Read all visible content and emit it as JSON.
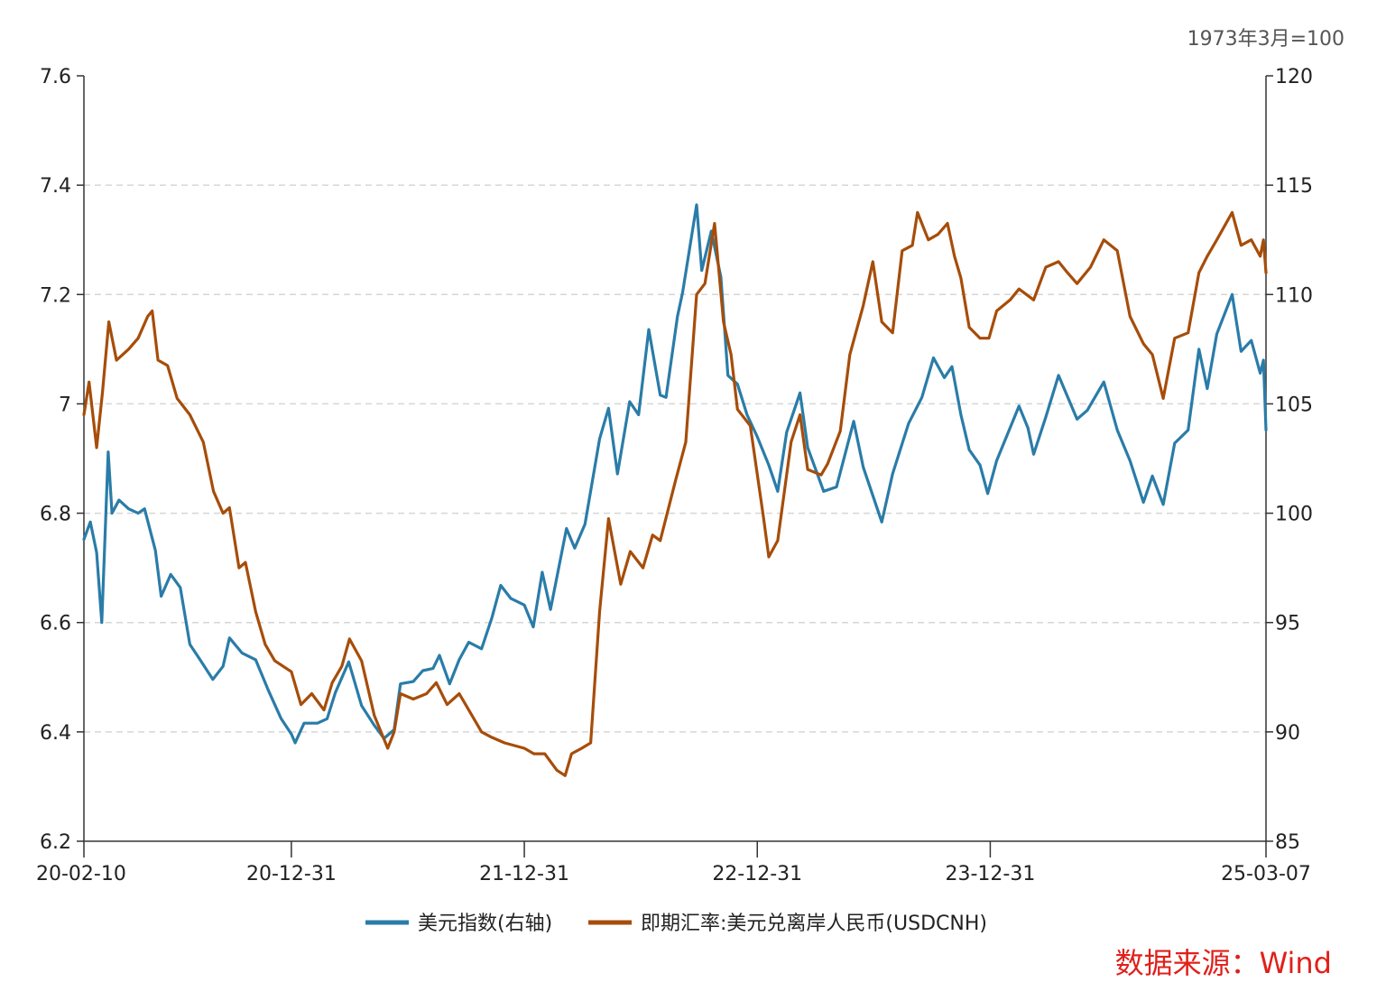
{
  "chart_data": {
    "type": "line",
    "title": "",
    "unit_note": "1973年3月=100",
    "source": "数据来源：Wind",
    "x_ticks": [
      "20-02-10",
      "20-12-31",
      "21-12-31",
      "22-12-31",
      "23-12-31",
      "25-03-07"
    ],
    "y_left": {
      "ticks": [
        "7.6",
        "7.4",
        "7.2",
        "7",
        "6.8",
        "6.6",
        "6.4",
        "6.2"
      ],
      "range": [
        6.2,
        7.6
      ]
    },
    "y_right": {
      "ticks": [
        "120",
        "115",
        "110",
        "105",
        "100",
        "95",
        "90",
        "85"
      ],
      "range": [
        85,
        120
      ]
    },
    "grid": "horizontal-dashed",
    "legend_position": "bottom",
    "series": [
      {
        "name": "美元指数(右轴)",
        "axis": "right",
        "color": "#2a7ca8",
        "points": [
          [
            "2020-02-10",
            98.8
          ],
          [
            "2020-02-20",
            99.6
          ],
          [
            "2020-03-01",
            98.2
          ],
          [
            "2020-03-09",
            95.0
          ],
          [
            "2020-03-19",
            102.8
          ],
          [
            "2020-03-25",
            100.0
          ],
          [
            "2020-04-05",
            100.6
          ],
          [
            "2020-04-20",
            100.2
          ],
          [
            "2020-05-05",
            100.0
          ],
          [
            "2020-05-15",
            100.2
          ],
          [
            "2020-06-01",
            98.3
          ],
          [
            "2020-06-10",
            96.2
          ],
          [
            "2020-06-25",
            97.2
          ],
          [
            "2020-07-10",
            96.6
          ],
          [
            "2020-07-25",
            94.0
          ],
          [
            "2020-08-10",
            93.3
          ],
          [
            "2020-08-30",
            92.4
          ],
          [
            "2020-09-15",
            93.0
          ],
          [
            "2020-09-25",
            94.3
          ],
          [
            "2020-10-15",
            93.6
          ],
          [
            "2020-11-05",
            93.3
          ],
          [
            "2020-11-25",
            91.9
          ],
          [
            "2020-12-15",
            90.6
          ],
          [
            "2020-12-31",
            89.9
          ],
          [
            "2021-01-06",
            89.5
          ],
          [
            "2021-01-20",
            90.4
          ],
          [
            "2021-02-10",
            90.4
          ],
          [
            "2021-02-25",
            90.6
          ],
          [
            "2021-03-10",
            91.8
          ],
          [
            "2021-03-31",
            93.2
          ],
          [
            "2021-04-20",
            91.2
          ],
          [
            "2021-05-10",
            90.3
          ],
          [
            "2021-05-25",
            89.7
          ],
          [
            "2021-06-10",
            90.1
          ],
          [
            "2021-06-20",
            92.2
          ],
          [
            "2021-07-10",
            92.3
          ],
          [
            "2021-07-25",
            92.8
          ],
          [
            "2021-08-10",
            92.9
          ],
          [
            "2021-08-20",
            93.5
          ],
          [
            "2021-09-05",
            92.2
          ],
          [
            "2021-09-20",
            93.3
          ],
          [
            "2021-10-05",
            94.1
          ],
          [
            "2021-10-25",
            93.8
          ],
          [
            "2021-11-10",
            95.2
          ],
          [
            "2021-11-24",
            96.7
          ],
          [
            "2021-12-10",
            96.1
          ],
          [
            "2021-12-31",
            95.8
          ],
          [
            "2022-01-14",
            94.8
          ],
          [
            "2022-01-28",
            97.3
          ],
          [
            "2022-02-10",
            95.6
          ],
          [
            "2022-03-07",
            99.3
          ],
          [
            "2022-03-20",
            98.4
          ],
          [
            "2022-04-05",
            99.5
          ],
          [
            "2022-04-28",
            103.4
          ],
          [
            "2022-05-12",
            104.8
          ],
          [
            "2022-05-26",
            101.8
          ],
          [
            "2022-06-14",
            105.1
          ],
          [
            "2022-06-28",
            104.5
          ],
          [
            "2022-07-14",
            108.4
          ],
          [
            "2022-08-01",
            105.4
          ],
          [
            "2022-08-10",
            105.3
          ],
          [
            "2022-08-28",
            109.0
          ],
          [
            "2022-09-05",
            110.1
          ],
          [
            "2022-09-27",
            114.1
          ],
          [
            "2022-10-05",
            111.1
          ],
          [
            "2022-10-20",
            112.9
          ],
          [
            "2022-11-04",
            110.8
          ],
          [
            "2022-11-15",
            106.3
          ],
          [
            "2022-11-30",
            105.9
          ],
          [
            "2022-12-15",
            104.5
          ],
          [
            "2022-12-31",
            103.5
          ],
          [
            "2023-01-18",
            102.2
          ],
          [
            "2023-02-01",
            101.0
          ],
          [
            "2023-02-15",
            103.7
          ],
          [
            "2023-03-08",
            105.5
          ],
          [
            "2023-03-20",
            103.0
          ],
          [
            "2023-04-14",
            101.0
          ],
          [
            "2023-05-04",
            101.2
          ],
          [
            "2023-05-31",
            104.2
          ],
          [
            "2023-06-15",
            102.1
          ],
          [
            "2023-07-14",
            99.6
          ],
          [
            "2023-07-31",
            101.8
          ],
          [
            "2023-08-25",
            104.1
          ],
          [
            "2023-09-15",
            105.3
          ],
          [
            "2023-10-03",
            107.1
          ],
          [
            "2023-10-20",
            106.2
          ],
          [
            "2023-11-01",
            106.7
          ],
          [
            "2023-11-15",
            104.5
          ],
          [
            "2023-11-28",
            102.9
          ],
          [
            "2023-12-15",
            102.2
          ],
          [
            "2023-12-27",
            100.9
          ],
          [
            "2024-01-10",
            102.4
          ],
          [
            "2024-02-14",
            104.9
          ],
          [
            "2024-02-28",
            103.9
          ],
          [
            "2024-03-08",
            102.7
          ],
          [
            "2024-03-27",
            104.4
          ],
          [
            "2024-04-16",
            106.3
          ],
          [
            "2024-05-15",
            104.3
          ],
          [
            "2024-05-31",
            104.7
          ],
          [
            "2024-06-26",
            106.0
          ],
          [
            "2024-07-17",
            103.8
          ],
          [
            "2024-08-06",
            102.4
          ],
          [
            "2024-08-27",
            100.5
          ],
          [
            "2024-09-10",
            101.7
          ],
          [
            "2024-09-27",
            100.4
          ],
          [
            "2024-10-15",
            103.2
          ],
          [
            "2024-11-05",
            103.8
          ],
          [
            "2024-11-22",
            107.5
          ],
          [
            "2024-12-05",
            105.7
          ],
          [
            "2024-12-20",
            108.2
          ],
          [
            "2025-01-13",
            110.0
          ],
          [
            "2025-01-27",
            107.4
          ],
          [
            "2025-02-12",
            107.9
          ],
          [
            "2025-02-26",
            106.4
          ],
          [
            "2025-03-03",
            107.0
          ],
          [
            "2025-03-07",
            103.8
          ]
        ]
      },
      {
        "name": "即期汇率:美元兑离岸人民币(USDCNH)",
        "axis": "left",
        "color": "#a64d0a",
        "points": [
          [
            "2020-02-10",
            6.98
          ],
          [
            "2020-02-18",
            7.04
          ],
          [
            "2020-03-01",
            6.92
          ],
          [
            "2020-03-10",
            7.02
          ],
          [
            "2020-03-20",
            7.15
          ],
          [
            "2020-04-01",
            7.08
          ],
          [
            "2020-04-20",
            7.1
          ],
          [
            "2020-05-05",
            7.12
          ],
          [
            "2020-05-20",
            7.16
          ],
          [
            "2020-05-27",
            7.17
          ],
          [
            "2020-06-05",
            7.08
          ],
          [
            "2020-06-20",
            7.07
          ],
          [
            "2020-07-05",
            7.01
          ],
          [
            "2020-07-25",
            6.98
          ],
          [
            "2020-08-15",
            6.93
          ],
          [
            "2020-08-31",
            6.84
          ],
          [
            "2020-09-15",
            6.8
          ],
          [
            "2020-09-25",
            6.81
          ],
          [
            "2020-10-10",
            6.7
          ],
          [
            "2020-10-20",
            6.71
          ],
          [
            "2020-11-05",
            6.62
          ],
          [
            "2020-11-20",
            6.56
          ],
          [
            "2020-12-05",
            6.53
          ],
          [
            "2020-12-31",
            6.51
          ],
          [
            "2021-01-15",
            6.45
          ],
          [
            "2021-02-01",
            6.47
          ],
          [
            "2021-02-20",
            6.44
          ],
          [
            "2021-03-05",
            6.49
          ],
          [
            "2021-03-20",
            6.52
          ],
          [
            "2021-04-01",
            6.57
          ],
          [
            "2021-04-20",
            6.53
          ],
          [
            "2021-05-10",
            6.43
          ],
          [
            "2021-05-31",
            6.37
          ],
          [
            "2021-06-10",
            6.4
          ],
          [
            "2021-06-20",
            6.47
          ],
          [
            "2021-07-10",
            6.46
          ],
          [
            "2021-07-31",
            6.47
          ],
          [
            "2021-08-15",
            6.49
          ],
          [
            "2021-09-01",
            6.45
          ],
          [
            "2021-09-20",
            6.47
          ],
          [
            "2021-10-05",
            6.44
          ],
          [
            "2021-10-25",
            6.4
          ],
          [
            "2021-11-10",
            6.39
          ],
          [
            "2021-11-30",
            6.38
          ],
          [
            "2021-12-31",
            6.37
          ],
          [
            "2022-01-15",
            6.36
          ],
          [
            "2022-02-01",
            6.36
          ],
          [
            "2022-02-20",
            6.33
          ],
          [
            "2022-03-05",
            6.32
          ],
          [
            "2022-03-15",
            6.36
          ],
          [
            "2022-03-31",
            6.37
          ],
          [
            "2022-04-14",
            6.38
          ],
          [
            "2022-04-28",
            6.62
          ],
          [
            "2022-05-12",
            6.79
          ],
          [
            "2022-05-31",
            6.67
          ],
          [
            "2022-06-15",
            6.73
          ],
          [
            "2022-07-05",
            6.7
          ],
          [
            "2022-07-20",
            6.76
          ],
          [
            "2022-08-01",
            6.75
          ],
          [
            "2022-08-25",
            6.86
          ],
          [
            "2022-09-10",
            6.93
          ],
          [
            "2022-09-27",
            7.2
          ],
          [
            "2022-10-10",
            7.22
          ],
          [
            "2022-10-25",
            7.33
          ],
          [
            "2022-11-08",
            7.15
          ],
          [
            "2022-11-20",
            7.09
          ],
          [
            "2022-11-30",
            6.99
          ],
          [
            "2022-12-20",
            6.96
          ],
          [
            "2023-01-10",
            6.79
          ],
          [
            "2023-01-18",
            6.72
          ],
          [
            "2023-02-01",
            6.75
          ],
          [
            "2023-02-22",
            6.93
          ],
          [
            "2023-03-08",
            6.98
          ],
          [
            "2023-03-20",
            6.88
          ],
          [
            "2023-04-10",
            6.87
          ],
          [
            "2023-04-20",
            6.89
          ],
          [
            "2023-05-10",
            6.95
          ],
          [
            "2023-05-25",
            7.09
          ],
          [
            "2023-06-15",
            7.18
          ],
          [
            "2023-06-30",
            7.26
          ],
          [
            "2023-07-14",
            7.15
          ],
          [
            "2023-07-31",
            7.13
          ],
          [
            "2023-08-15",
            7.28
          ],
          [
            "2023-08-31",
            7.29
          ],
          [
            "2023-09-08",
            7.35
          ],
          [
            "2023-09-25",
            7.3
          ],
          [
            "2023-10-10",
            7.31
          ],
          [
            "2023-10-25",
            7.33
          ],
          [
            "2023-11-05",
            7.27
          ],
          [
            "2023-11-15",
            7.23
          ],
          [
            "2023-11-28",
            7.14
          ],
          [
            "2023-12-15",
            7.12
          ],
          [
            "2023-12-29",
            7.12
          ],
          [
            "2024-01-10",
            7.17
          ],
          [
            "2024-01-31",
            7.19
          ],
          [
            "2024-02-14",
            7.21
          ],
          [
            "2024-03-08",
            7.19
          ],
          [
            "2024-03-27",
            7.25
          ],
          [
            "2024-04-16",
            7.26
          ],
          [
            "2024-04-30",
            7.24
          ],
          [
            "2024-05-15",
            7.22
          ],
          [
            "2024-06-05",
            7.25
          ],
          [
            "2024-06-26",
            7.3
          ],
          [
            "2024-07-17",
            7.28
          ],
          [
            "2024-08-06",
            7.16
          ],
          [
            "2024-08-27",
            7.11
          ],
          [
            "2024-09-10",
            7.09
          ],
          [
            "2024-09-27",
            7.01
          ],
          [
            "2024-10-15",
            7.12
          ],
          [
            "2024-11-05",
            7.13
          ],
          [
            "2024-11-22",
            7.24
          ],
          [
            "2024-12-05",
            7.27
          ],
          [
            "2024-12-20",
            7.3
          ],
          [
            "2025-01-13",
            7.35
          ],
          [
            "2025-01-27",
            7.29
          ],
          [
            "2025-02-12",
            7.3
          ],
          [
            "2025-02-26",
            7.27
          ],
          [
            "2025-03-03",
            7.3
          ],
          [
            "2025-03-07",
            7.24
          ]
        ]
      }
    ]
  }
}
